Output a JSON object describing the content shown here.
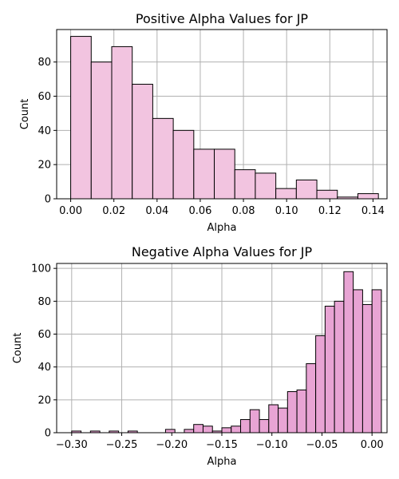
{
  "chart_data": [
    {
      "type": "bar",
      "title": "Positive Alpha Values for JP",
      "xlabel": "Alpha",
      "ylabel": "Count",
      "xlim": [
        -0.0065,
        0.1465
      ],
      "ylim": [
        0,
        99
      ],
      "xticks": [
        0.0,
        0.02,
        0.04,
        0.06,
        0.08,
        0.1,
        0.12,
        0.14
      ],
      "xtick_labels": [
        "0.00",
        "0.02",
        "0.04",
        "0.06",
        "0.08",
        "0.10",
        "0.12",
        "0.14"
      ],
      "yticks": [
        0,
        20,
        40,
        60,
        80
      ],
      "ytick_labels": [
        "0",
        "20",
        "40",
        "60",
        "80"
      ],
      "grid": true,
      "color": "#f2c4e0",
      "edgecolor": "#000000",
      "bin_start": 0.0,
      "bin_width": 0.0095,
      "counts": [
        95,
        80,
        89,
        67,
        47,
        40,
        29,
        29,
        17,
        15,
        6,
        11,
        5,
        1,
        3
      ]
    },
    {
      "type": "bar",
      "title": "Negative Alpha Values for JP",
      "xlabel": "Alpha",
      "ylabel": "Count",
      "xlim": [
        -0.315,
        0.015
      ],
      "ylim": [
        0,
        103
      ],
      "xticks": [
        -0.3,
        -0.25,
        -0.2,
        -0.15,
        -0.1,
        -0.05,
        0.0
      ],
      "xtick_labels": [
        "−0.30",
        "−0.25",
        "−0.20",
        "−0.15",
        "−0.10",
        "−0.05",
        "0.00"
      ],
      "yticks": [
        0,
        20,
        40,
        60,
        80,
        100
      ],
      "ytick_labels": [
        "0",
        "20",
        "40",
        "60",
        "80",
        "100"
      ],
      "grid": true,
      "color": "#e8a4d4",
      "edgecolor": "#000000",
      "bin_start": -0.3,
      "bin_width": 0.009375,
      "counts": [
        1,
        0,
        1,
        0,
        1,
        0,
        1,
        0,
        0,
        0,
        2,
        0,
        2,
        5,
        4,
        1,
        3,
        4,
        8,
        14,
        8,
        17,
        15,
        25,
        26,
        42,
        59,
        77,
        80,
        98,
        87,
        78,
        87
      ]
    }
  ]
}
